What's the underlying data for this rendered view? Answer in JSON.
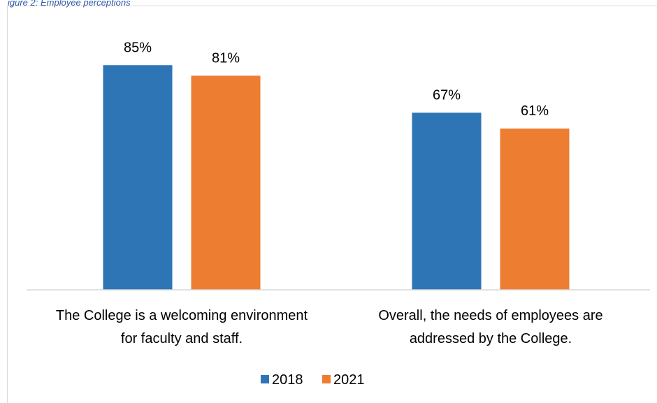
{
  "header_fragment": "igure 2: Employee perceptions",
  "chart_data": {
    "type": "bar",
    "categories": [
      [
        "The College is a welcoming environment",
        "for faculty and staff."
      ],
      [
        "Overall, the needs of employees are",
        "addressed by the College."
      ]
    ],
    "series": [
      {
        "name": "2018",
        "color": "#2e75b6",
        "values": [
          85,
          67
        ],
        "labels": [
          "85%",
          "67%"
        ]
      },
      {
        "name": "2021",
        "color": "#ed7d31",
        "values": [
          81,
          61
        ],
        "labels": [
          "81%",
          "61%"
        ]
      }
    ],
    "ylim": [
      0,
      100
    ],
    "grid": false,
    "legend": "bottom-center",
    "axis_color": "#d9d9d9"
  }
}
